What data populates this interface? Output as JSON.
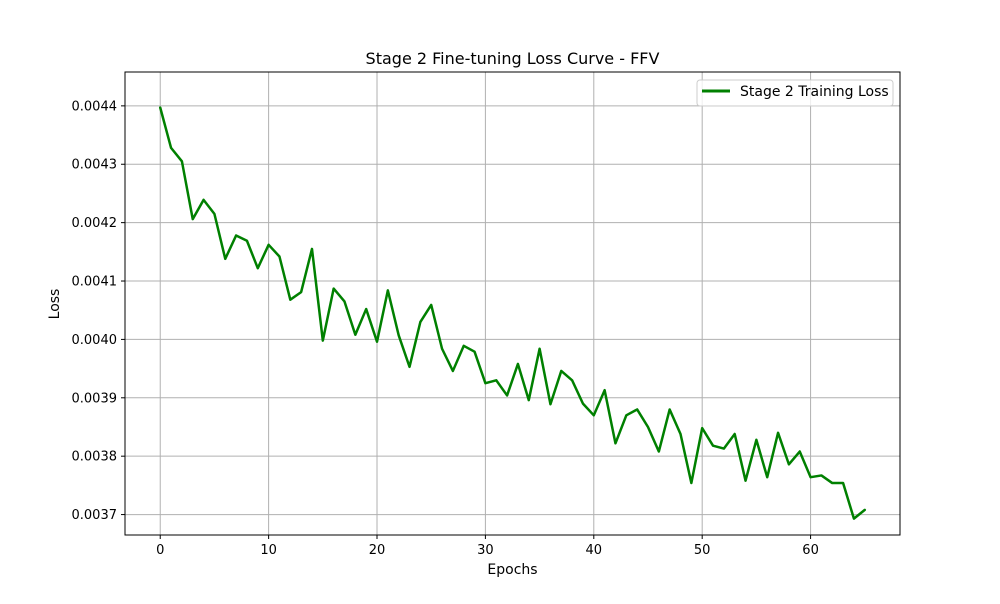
{
  "chart_data": {
    "type": "line",
    "title": "Stage 2 Fine-tuning Loss Curve - FFV",
    "xlabel": "Epochs",
    "ylabel": "Loss",
    "xlim": [
      -3.25,
      68.25
    ],
    "ylim": [
      0.003665,
      0.004458
    ],
    "x_ticks": [
      0,
      10,
      20,
      30,
      40,
      50,
      60
    ],
    "y_ticks": [
      0.0037,
      0.0038,
      0.0039,
      0.004,
      0.0041,
      0.0042,
      0.0043,
      0.0044
    ],
    "x_tick_labels": [
      "0",
      "10",
      "20",
      "30",
      "40",
      "50",
      "60"
    ],
    "y_tick_labels": [
      "0.0037",
      "0.0038",
      "0.0039",
      "0.0040",
      "0.0041",
      "0.0042",
      "0.0043",
      "0.0044"
    ],
    "grid": true,
    "legend_position": "top-right",
    "series": [
      {
        "name": "Stage 2 Training Loss",
        "color": "#008000",
        "x": [
          0,
          1,
          2,
          3,
          4,
          5,
          6,
          7,
          8,
          9,
          10,
          11,
          12,
          13,
          14,
          15,
          16,
          17,
          18,
          19,
          20,
          21,
          22,
          23,
          24,
          25,
          26,
          27,
          28,
          29,
          30,
          31,
          32,
          33,
          34,
          35,
          36,
          37,
          38,
          39,
          40,
          41,
          42,
          43,
          44,
          45,
          46,
          47,
          48,
          49,
          50,
          51,
          52,
          53,
          54,
          55,
          56,
          57,
          58,
          59,
          60,
          61,
          62,
          63,
          64,
          65
        ],
        "y": [
          0.004397,
          0.004328,
          0.004305,
          0.004206,
          0.004239,
          0.004215,
          0.004138,
          0.004178,
          0.004169,
          0.004122,
          0.004162,
          0.004142,
          0.004068,
          0.004081,
          0.004155,
          0.003998,
          0.004087,
          0.004065,
          0.004008,
          0.004052,
          0.003996,
          0.004084,
          0.004007,
          0.003953,
          0.00403,
          0.004059,
          0.003984,
          0.003946,
          0.003989,
          0.003979,
          0.003925,
          0.00393,
          0.003904,
          0.003958,
          0.003896,
          0.003984,
          0.003889,
          0.003946,
          0.00393,
          0.00389,
          0.00387,
          0.003913,
          0.003822,
          0.00387,
          0.00388,
          0.00385,
          0.003808,
          0.00388,
          0.003838,
          0.003754,
          0.003848,
          0.003818,
          0.003813,
          0.003838,
          0.003758,
          0.003828,
          0.003764,
          0.00384,
          0.003786,
          0.003808,
          0.003764,
          0.003767,
          0.003754,
          0.003754,
          0.003693,
          0.003708
        ]
      }
    ]
  }
}
